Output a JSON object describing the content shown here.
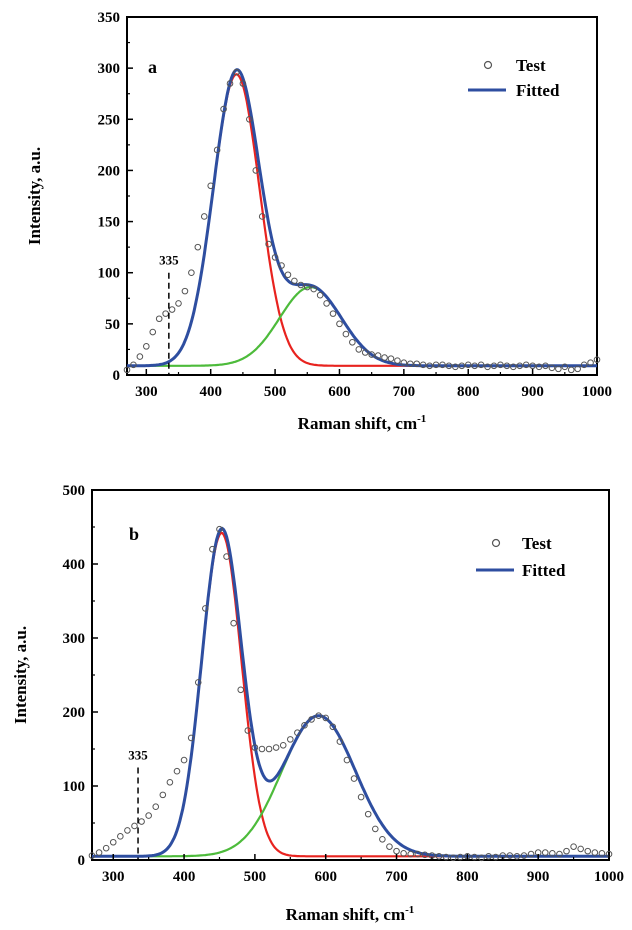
{
  "chart_data": [
    {
      "type": "line",
      "panel_label": "a",
      "xlabel": "Raman shift, cm",
      "xlabel_sup": "-1",
      "ylabel": "Intensity, a.u.",
      "xlim": [
        270,
        1000
      ],
      "ylim": [
        0,
        350
      ],
      "xticks": [
        300,
        400,
        500,
        600,
        700,
        800,
        900,
        1000
      ],
      "yticks": [
        0,
        50,
        100,
        150,
        200,
        250,
        300,
        350
      ],
      "legend": {
        "position": "top-right",
        "entries": [
          "Test",
          "Fitted"
        ]
      },
      "annotation": {
        "text": "335",
        "x": 335,
        "y_top": 100
      },
      "baseline": 9,
      "components": [
        {
          "name": "",
          "color": "#e8231f",
          "center": 440,
          "height": 285,
          "sigma": 36
        },
        {
          "name": "",
          "color": "#4dbb3b",
          "center": 555,
          "height": 77,
          "sigma": 48
        }
      ],
      "fitted": {
        "color": "#2e4ea0"
      },
      "test": {
        "x": [
          270,
          280,
          290,
          300,
          310,
          320,
          330,
          340,
          350,
          360,
          370,
          380,
          390,
          400,
          410,
          420,
          430,
          440,
          450,
          460,
          470,
          480,
          490,
          500,
          510,
          520,
          530,
          540,
          550,
          560,
          570,
          580,
          590,
          600,
          610,
          620,
          630,
          640,
          650,
          660,
          670,
          680,
          690,
          700,
          710,
          720,
          730,
          740,
          750,
          760,
          770,
          780,
          790,
          800,
          810,
          820,
          830,
          840,
          850,
          860,
          870,
          880,
          890,
          900,
          910,
          920,
          930,
          940,
          950,
          960,
          970,
          980,
          990,
          1000
        ],
        "y": [
          5,
          10,
          18,
          28,
          42,
          55,
          60,
          64,
          70,
          82,
          100,
          125,
          155,
          185,
          220,
          260,
          285,
          296,
          285,
          250,
          200,
          155,
          128,
          115,
          107,
          98,
          92,
          88,
          86,
          84,
          78,
          70,
          60,
          50,
          40,
          32,
          25,
          22,
          20,
          19,
          17,
          16,
          14,
          12,
          11,
          11,
          10,
          9,
          10,
          10,
          9,
          8,
          9,
          10,
          9,
          10,
          8,
          9,
          10,
          9,
          8,
          9,
          10,
          9,
          8,
          9,
          7,
          6,
          8,
          5,
          6,
          10,
          12,
          15
        ]
      }
    },
    {
      "type": "line",
      "panel_label": "b",
      "xlabel": "Raman shift, cm",
      "xlabel_sup": "-1",
      "ylabel": "Intensity, a.u.",
      "xlim": [
        270,
        1000
      ],
      "ylim": [
        0,
        500
      ],
      "xticks": [
        300,
        400,
        500,
        600,
        700,
        800,
        900,
        1000
      ],
      "yticks": [
        0,
        100,
        200,
        300,
        400,
        500
      ],
      "legend": {
        "position": "top-right",
        "entries": [
          "Test",
          "Fitted"
        ]
      },
      "annotation": {
        "text": "335",
        "x": 335,
        "y_top": 125
      },
      "baseline": 5,
      "components": [
        {
          "name": "",
          "color": "#e8231f",
          "center": 453,
          "height": 437,
          "sigma": 28
        },
        {
          "name": "",
          "color": "#4dbb3b",
          "center": 590,
          "height": 190,
          "sigma": 52
        }
      ],
      "fitted": {
        "color": "#2e4ea0"
      },
      "test": {
        "x": [
          270,
          280,
          290,
          300,
          310,
          320,
          330,
          340,
          350,
          360,
          370,
          380,
          390,
          400,
          410,
          420,
          430,
          440,
          450,
          460,
          470,
          480,
          490,
          500,
          510,
          520,
          530,
          540,
          550,
          560,
          570,
          580,
          590,
          600,
          610,
          620,
          630,
          640,
          650,
          660,
          670,
          680,
          690,
          700,
          710,
          720,
          730,
          740,
          750,
          760,
          770,
          780,
          790,
          800,
          810,
          820,
          830,
          840,
          850,
          860,
          870,
          880,
          890,
          900,
          910,
          920,
          930,
          940,
          950,
          960,
          970,
          980,
          990,
          1000
        ],
        "y": [
          6,
          10,
          16,
          24,
          32,
          40,
          46,
          52,
          60,
          72,
          88,
          105,
          120,
          135,
          165,
          240,
          340,
          420,
          447,
          410,
          320,
          230,
          175,
          152,
          150,
          150,
          152,
          155,
          163,
          172,
          182,
          190,
          195,
          192,
          180,
          160,
          135,
          110,
          85,
          62,
          42,
          28,
          18,
          12,
          9,
          8,
          8,
          7,
          6,
          5,
          4,
          3,
          4,
          5,
          4,
          3,
          5,
          4,
          6,
          6,
          5,
          6,
          8,
          10,
          10,
          9,
          8,
          12,
          18,
          15,
          12,
          10,
          9,
          8
        ]
      }
    }
  ]
}
